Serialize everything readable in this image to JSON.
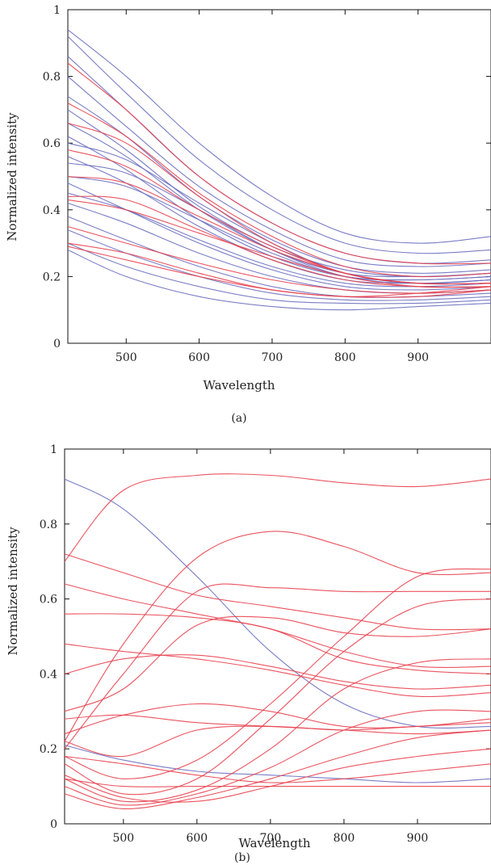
{
  "colors": {
    "blue": "#6b6fc0",
    "red": "#e8404e",
    "axis": "#111111"
  },
  "panels": [
    {
      "caption": "(a)",
      "xlabel": "Wavelength",
      "ylabel": "Normalized intensity"
    },
    {
      "caption": "(b)",
      "xlabel": "Wavelength",
      "ylabel": "Normalized intensity"
    }
  ],
  "chart_data": [
    {
      "type": "line",
      "title": "",
      "xlabel": "Wavelength",
      "ylabel": "Normalized intensity",
      "xlim": [
        420,
        1000
      ],
      "ylim": [
        0,
        1
      ],
      "xticks": [
        500,
        600,
        700,
        800,
        900
      ],
      "yticks": [
        0,
        0.2,
        0.4,
        0.6,
        0.8,
        1
      ],
      "grid": false,
      "legend": "none",
      "x": [
        420,
        500,
        600,
        700,
        800,
        900,
        1000
      ],
      "series": [
        {
          "group": "blue",
          "values": [
            0.94,
            0.8,
            0.6,
            0.44,
            0.33,
            0.3,
            0.32
          ]
        },
        {
          "group": "blue",
          "values": [
            0.92,
            0.75,
            0.55,
            0.4,
            0.3,
            0.27,
            0.28
          ]
        },
        {
          "group": "blue",
          "values": [
            0.86,
            0.7,
            0.5,
            0.36,
            0.27,
            0.24,
            0.25
          ]
        },
        {
          "group": "blue",
          "values": [
            0.8,
            0.65,
            0.47,
            0.34,
            0.25,
            0.23,
            0.24
          ]
        },
        {
          "group": "blue",
          "values": [
            0.74,
            0.62,
            0.44,
            0.31,
            0.23,
            0.21,
            0.22
          ]
        },
        {
          "group": "blue",
          "values": [
            0.7,
            0.58,
            0.41,
            0.29,
            0.22,
            0.2,
            0.21
          ]
        },
        {
          "group": "blue",
          "values": [
            0.66,
            0.56,
            0.4,
            0.28,
            0.21,
            0.2,
            0.21
          ]
        },
        {
          "group": "blue",
          "values": [
            0.62,
            0.52,
            0.37,
            0.26,
            0.2,
            0.19,
            0.2
          ]
        },
        {
          "group": "blue",
          "values": [
            0.6,
            0.55,
            0.42,
            0.3,
            0.21,
            0.18,
            0.19
          ]
        },
        {
          "group": "blue",
          "values": [
            0.56,
            0.48,
            0.35,
            0.25,
            0.19,
            0.18,
            0.19
          ]
        },
        {
          "group": "blue",
          "values": [
            0.54,
            0.51,
            0.4,
            0.28,
            0.2,
            0.18,
            0.19
          ]
        },
        {
          "group": "blue",
          "values": [
            0.5,
            0.47,
            0.37,
            0.27,
            0.2,
            0.19,
            0.2
          ]
        },
        {
          "group": "blue",
          "values": [
            0.48,
            0.4,
            0.3,
            0.22,
            0.17,
            0.16,
            0.17
          ]
        },
        {
          "group": "blue",
          "values": [
            0.45,
            0.4,
            0.31,
            0.23,
            0.18,
            0.17,
            0.18
          ]
        },
        {
          "group": "blue",
          "values": [
            0.42,
            0.36,
            0.27,
            0.2,
            0.16,
            0.15,
            0.16
          ]
        },
        {
          "group": "blue",
          "values": [
            0.38,
            0.31,
            0.23,
            0.17,
            0.14,
            0.14,
            0.15
          ]
        },
        {
          "group": "blue",
          "values": [
            0.34,
            0.27,
            0.2,
            0.15,
            0.13,
            0.13,
            0.14
          ]
        },
        {
          "group": "blue",
          "values": [
            0.3,
            0.23,
            0.17,
            0.13,
            0.12,
            0.12,
            0.13
          ]
        },
        {
          "group": "blue",
          "values": [
            0.28,
            0.2,
            0.14,
            0.11,
            0.1,
            0.11,
            0.12
          ]
        },
        {
          "group": "red",
          "values": [
            0.84,
            0.7,
            0.5,
            0.36,
            0.27,
            0.24,
            0.24
          ]
        },
        {
          "group": "red",
          "values": [
            0.72,
            0.62,
            0.45,
            0.32,
            0.23,
            0.2,
            0.21
          ]
        },
        {
          "group": "red",
          "values": [
            0.66,
            0.6,
            0.44,
            0.3,
            0.21,
            0.18,
            0.18
          ]
        },
        {
          "group": "red",
          "values": [
            0.58,
            0.53,
            0.4,
            0.29,
            0.21,
            0.18,
            0.18
          ]
        },
        {
          "group": "red",
          "values": [
            0.5,
            0.48,
            0.38,
            0.28,
            0.21,
            0.18,
            0.18
          ]
        },
        {
          "group": "red",
          "values": [
            0.44,
            0.43,
            0.34,
            0.25,
            0.19,
            0.17,
            0.17
          ]
        },
        {
          "group": "red",
          "values": [
            0.43,
            0.4,
            0.33,
            0.26,
            0.2,
            0.17,
            0.17
          ]
        },
        {
          "group": "red",
          "values": [
            0.35,
            0.3,
            0.24,
            0.19,
            0.16,
            0.15,
            0.16
          ]
        },
        {
          "group": "red",
          "values": [
            0.3,
            0.27,
            0.21,
            0.16,
            0.14,
            0.14,
            0.16
          ]
        },
        {
          "group": "red",
          "values": [
            0.29,
            0.25,
            0.2,
            0.16,
            0.14,
            0.15,
            0.17
          ]
        }
      ]
    },
    {
      "type": "line",
      "title": "",
      "xlabel": "Wavelength",
      "ylabel": "Normalized intensity",
      "xlim": [
        420,
        1000
      ],
      "ylim": [
        0,
        1
      ],
      "xticks": [
        500,
        600,
        700,
        800,
        900
      ],
      "yticks": [
        0,
        0.2,
        0.4,
        0.6,
        0.8,
        1
      ],
      "grid": false,
      "legend": "none",
      "x": [
        420,
        500,
        600,
        700,
        800,
        900,
        1000
      ],
      "series": [
        {
          "group": "blue",
          "values": [
            0.92,
            0.84,
            0.66,
            0.46,
            0.32,
            0.26,
            0.26
          ]
        },
        {
          "group": "blue",
          "values": [
            0.21,
            0.17,
            0.14,
            0.13,
            0.12,
            0.11,
            0.12
          ]
        },
        {
          "group": "red",
          "values": [
            0.7,
            0.89,
            0.93,
            0.93,
            0.91,
            0.9,
            0.92
          ]
        },
        {
          "group": "red",
          "values": [
            0.22,
            0.48,
            0.71,
            0.78,
            0.74,
            0.67,
            0.67
          ]
        },
        {
          "group": "red",
          "values": [
            0.2,
            0.4,
            0.62,
            0.63,
            0.62,
            0.62,
            0.62
          ]
        },
        {
          "group": "red",
          "values": [
            0.72,
            0.67,
            0.61,
            0.58,
            0.55,
            0.52,
            0.52
          ]
        },
        {
          "group": "red",
          "values": [
            0.64,
            0.6,
            0.56,
            0.52,
            0.46,
            0.42,
            0.42
          ]
        },
        {
          "group": "red",
          "values": [
            0.56,
            0.56,
            0.55,
            0.52,
            0.44,
            0.41,
            0.4
          ]
        },
        {
          "group": "red",
          "values": [
            0.48,
            0.46,
            0.44,
            0.41,
            0.37,
            0.34,
            0.35
          ]
        },
        {
          "group": "red",
          "values": [
            0.4,
            0.44,
            0.45,
            0.42,
            0.38,
            0.36,
            0.37
          ]
        },
        {
          "group": "red",
          "values": [
            0.3,
            0.36,
            0.53,
            0.55,
            0.51,
            0.5,
            0.52
          ]
        },
        {
          "group": "red",
          "values": [
            0.28,
            0.29,
            0.27,
            0.26,
            0.25,
            0.24,
            0.25
          ]
        },
        {
          "group": "red",
          "values": [
            0.24,
            0.29,
            0.32,
            0.3,
            0.26,
            0.26,
            0.28
          ]
        },
        {
          "group": "red",
          "values": [
            0.22,
            0.18,
            0.25,
            0.26,
            0.25,
            0.26,
            0.27
          ]
        },
        {
          "group": "red",
          "values": [
            0.18,
            0.12,
            0.17,
            0.32,
            0.5,
            0.66,
            0.68
          ]
        },
        {
          "group": "red",
          "values": [
            0.16,
            0.08,
            0.12,
            0.28,
            0.46,
            0.58,
            0.6
          ]
        },
        {
          "group": "red",
          "values": [
            0.12,
            0.06,
            0.09,
            0.2,
            0.36,
            0.43,
            0.44
          ]
        },
        {
          "group": "red",
          "values": [
            0.1,
            0.05,
            0.08,
            0.15,
            0.25,
            0.3,
            0.3
          ]
        },
        {
          "group": "red",
          "values": [
            0.08,
            0.04,
            0.07,
            0.12,
            0.18,
            0.23,
            0.25
          ]
        },
        {
          "group": "red",
          "values": [
            0.13,
            0.07,
            0.06,
            0.1,
            0.15,
            0.18,
            0.2
          ]
        },
        {
          "group": "red",
          "values": [
            0.18,
            0.16,
            0.13,
            0.11,
            0.12,
            0.14,
            0.16
          ]
        },
        {
          "group": "red",
          "values": [
            0.12,
            0.1,
            0.1,
            0.1,
            0.1,
            0.1,
            0.1
          ]
        }
      ]
    }
  ]
}
